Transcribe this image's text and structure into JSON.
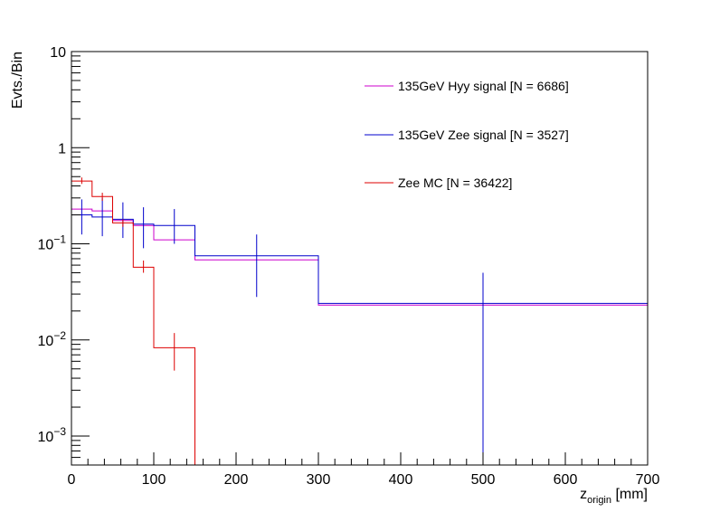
{
  "chart_data": {
    "type": "histogram-line",
    "x_scale": "linear",
    "y_scale": "log",
    "xlim": [
      0,
      700
    ],
    "ylim": [
      0.0005,
      10
    ],
    "xlabel": {
      "main": "z",
      "subscript": "origin",
      "unit": " [mm]"
    },
    "ylabel": "Evts./Bin",
    "x_ticks": [
      {
        "value": 0,
        "label": "0"
      },
      {
        "value": 100,
        "label": "100"
      },
      {
        "value": 200,
        "label": "200"
      },
      {
        "value": 300,
        "label": "300"
      },
      {
        "value": 400,
        "label": "400"
      },
      {
        "value": 500,
        "label": "500"
      },
      {
        "value": 600,
        "label": "600"
      },
      {
        "value": 700,
        "label": "700"
      }
    ],
    "y_ticks": [
      {
        "value": 10,
        "mantissa": "10",
        "exp": ""
      },
      {
        "value": 1,
        "mantissa": "1",
        "exp": ""
      },
      {
        "value": 0.1,
        "mantissa": "10",
        "exp": "−1"
      },
      {
        "value": 0.01,
        "mantissa": "10",
        "exp": "−2"
      },
      {
        "value": 0.001,
        "mantissa": "10",
        "exp": "−3"
      }
    ],
    "bin_edges": [
      0,
      25,
      50,
      75,
      100,
      150,
      300,
      700
    ],
    "series": [
      {
        "name": "135GeV Hyy signal [N = 6686]",
        "color": "#cc00cc",
        "values": [
          0.23,
          0.22,
          0.175,
          0.155,
          0.11,
          0.068,
          0.023
        ],
        "error_bars": []
      },
      {
        "name": "135GeV Zee signal [N = 3527]",
        "color": "#0000cc",
        "values": [
          0.2,
          0.19,
          0.18,
          0.16,
          0.155,
          0.075,
          0.024
        ],
        "error_bars": [
          {
            "x": 12.5,
            "lo": 0.125,
            "hi": 0.29
          },
          {
            "x": 37.5,
            "lo": 0.12,
            "hi": 0.3
          },
          {
            "x": 62.5,
            "lo": 0.115,
            "hi": 0.27
          },
          {
            "x": 87.5,
            "lo": 0.09,
            "hi": 0.24
          },
          {
            "x": 125,
            "lo": 0.1,
            "hi": 0.23
          },
          {
            "x": 225,
            "lo": 0.028,
            "hi": 0.125
          },
          {
            "x": 500,
            "lo": 0.0005,
            "hi": 0.05
          }
        ]
      },
      {
        "name": "Zee MC [N = 36422]",
        "color": "#dd0000",
        "values": [
          0.45,
          0.31,
          0.165,
          0.057,
          0.0083,
          0.0005,
          0.0005
        ],
        "error_bars": [
          {
            "x": 12.5,
            "lo": 0.42,
            "hi": 0.49
          },
          {
            "x": 37.5,
            "lo": 0.28,
            "hi": 0.34
          },
          {
            "x": 62.5,
            "lo": 0.15,
            "hi": 0.18
          },
          {
            "x": 87.5,
            "lo": 0.05,
            "hi": 0.067
          },
          {
            "x": 125,
            "lo": 0.0048,
            "hi": 0.0118
          }
        ]
      }
    ],
    "legend_position": "top-right"
  }
}
